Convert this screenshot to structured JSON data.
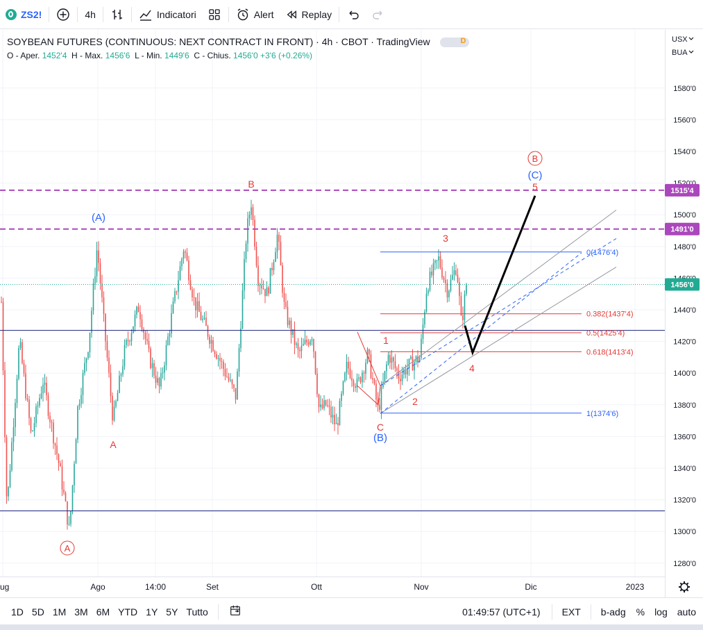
{
  "toolbar": {
    "symbol": "ZS2!",
    "interval": "4h",
    "indicators_label": "Indicatori",
    "alert_label": "Alert",
    "replay_label": "Replay"
  },
  "legend": {
    "title": "SOYBEAN FUTURES (CONTINUOUS: NEXT CONTRACT IN FRONT) · 4h · CBOT · TradingView",
    "badge": "D",
    "o_label": "O - Aper.",
    "o_value": "1452'4",
    "h_label": "H - Max.",
    "h_value": "1456'6",
    "l_label": "L - Min.",
    "l_value": "1449'6",
    "c_label": "C - Chius.",
    "c_value": "1456'0",
    "change": "+3'6 (+0.26%)"
  },
  "price_axis": {
    "currency": "USX",
    "unit": "BUA",
    "ticks": [
      "1580'0",
      "1560'0",
      "1540'0",
      "1520'0",
      "1500'0",
      "1480'0",
      "1460'0",
      "1440'0",
      "1420'0",
      "1400'0",
      "1380'0",
      "1360'0",
      "1340'0",
      "1320'0",
      "1300'0",
      "1280'0"
    ],
    "tick_values": [
      1580,
      1560,
      1540,
      1520,
      1500,
      1480,
      1460,
      1440,
      1420,
      1400,
      1380,
      1360,
      1340,
      1320,
      1300,
      1280
    ],
    "badges": [
      {
        "label": "1515'4",
        "value": 1515.5,
        "color": "#ab47bc"
      },
      {
        "label": "1491'0",
        "value": 1491,
        "color": "#ab47bc"
      },
      {
        "label": "1456'0",
        "value": 1456,
        "color": "#22ab94"
      }
    ]
  },
  "time_axis": {
    "labels": [
      "ug",
      "Ago",
      "14:00",
      "Set",
      "Ott",
      "Nov",
      "Dic",
      "2023"
    ]
  },
  "wave_labels": [
    {
      "text": "(A)",
      "color": "#2962ff"
    },
    {
      "text": "A",
      "color": "#e53935"
    },
    {
      "text": "A",
      "color": "#e53935",
      "circled": true
    },
    {
      "text": "B",
      "color": "#e53935"
    },
    {
      "text": "C",
      "color": "#e53935"
    },
    {
      "text": "(B)",
      "color": "#2962ff"
    },
    {
      "text": "1",
      "color": "#e53935"
    },
    {
      "text": "2",
      "color": "#e53935"
    },
    {
      "text": "3",
      "color": "#e53935"
    },
    {
      "text": "4",
      "color": "#e53935"
    },
    {
      "text": "5",
      "color": "#e53935"
    },
    {
      "text": "(C)",
      "color": "#2962ff"
    },
    {
      "text": "B",
      "color": "#e53935",
      "circled": true
    }
  ],
  "fib_levels": [
    {
      "label": "0(1476'4)",
      "value": 1476.5,
      "color": "#2962ff"
    },
    {
      "label": "0.382(1437'4)",
      "value": 1437.5,
      "color": "#e53935"
    },
    {
      "label": "0.5(1425'4)",
      "value": 1425.5,
      "color": "#e53935"
    },
    {
      "label": "0.618(1413'4)",
      "value": 1413.5,
      "color": "#e53935"
    },
    {
      "label": "1(1374'6)",
      "value": 1374.75,
      "color": "#2962ff"
    }
  ],
  "horizontal_lines": [
    {
      "value": 1427,
      "color": "#1a237e",
      "style": "solid"
    },
    {
      "value": 1313,
      "color": "#1a237e",
      "style": "solid"
    },
    {
      "value": 1515.5,
      "color": "#ab47bc",
      "style": "dashed"
    },
    {
      "value": 1491,
      "color": "#ab47bc",
      "style": "dashed"
    },
    {
      "value": 1456,
      "color": "#22ab94",
      "style": "dotted"
    }
  ],
  "bottom": {
    "ranges": [
      "1D",
      "5D",
      "1M",
      "3M",
      "6M",
      "YTD",
      "1Y",
      "5Y",
      "Tutto"
    ],
    "clock": "01:49:57 (UTC+1)",
    "ext": "EXT",
    "badj": "b-adg",
    "percent": "%",
    "log": "log",
    "auto": "auto"
  },
  "icons": {
    "add": "plus-circle-icon",
    "bars": "bar-style-icon",
    "indicators": "indicators-icon",
    "layout": "layout-grid-icon",
    "alert": "alarm-clock-icon",
    "replay": "rewind-icon",
    "undo": "undo-icon",
    "redo": "redo-icon",
    "settings": "gear-icon",
    "calendar": "calendar-range-icon"
  }
}
